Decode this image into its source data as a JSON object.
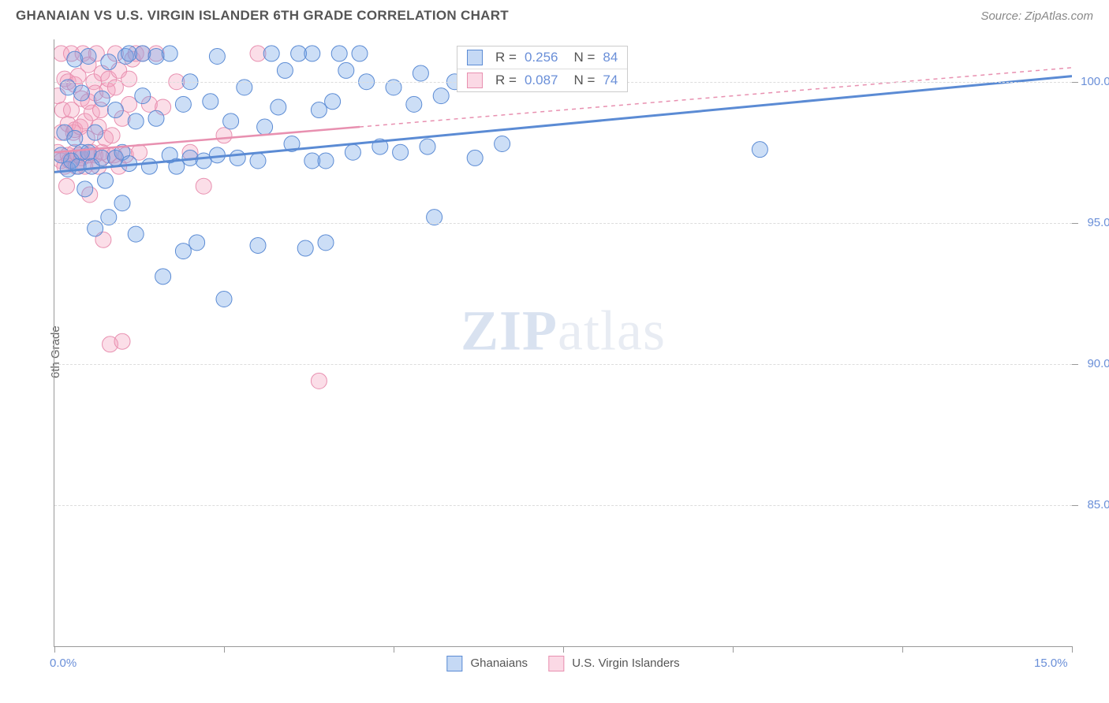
{
  "header": {
    "title": "GHANAIAN VS U.S. VIRGIN ISLANDER 6TH GRADE CORRELATION CHART",
    "source": "Source: ZipAtlas.com"
  },
  "chart": {
    "type": "scatter",
    "ylabel": "6th Grade",
    "xlim": [
      0,
      15
    ],
    "ylim": [
      80,
      101.5
    ],
    "x_ticks": [
      0,
      2.5,
      5,
      7.5,
      10,
      12.5,
      15
    ],
    "x_tick_labels_shown": {
      "0": "0.0%",
      "15": "15.0%"
    },
    "y_ticks": [
      85,
      90,
      95,
      100
    ],
    "y_tick_labels": [
      "85.0%",
      "90.0%",
      "95.0%",
      "100.0%"
    ],
    "background_color": "#ffffff",
    "grid_color": "#dddddd",
    "axis_color": "#999999",
    "label_color": "#6a8fd8",
    "marker_radius": 10,
    "marker_opacity": 0.45,
    "watermark": "ZIPatlas",
    "series": [
      {
        "name": "Ghanaians",
        "color_fill": "rgba(110,160,230,0.35)",
        "color_stroke": "#5b8bd4",
        "R": "0.256",
        "N": "84",
        "trend": {
          "x1": 0,
          "y1": 96.8,
          "x2": 15,
          "y2": 100.2,
          "solid_to_x": 15
        },
        "points": [
          [
            0.1,
            97.4
          ],
          [
            0.15,
            98.2
          ],
          [
            0.2,
            96.9
          ],
          [
            0.2,
            99.8
          ],
          [
            0.25,
            97.2
          ],
          [
            0.3,
            98.0
          ],
          [
            0.3,
            100.8
          ],
          [
            0.35,
            97.0
          ],
          [
            0.4,
            97.5
          ],
          [
            0.4,
            99.6
          ],
          [
            0.45,
            96.2
          ],
          [
            0.5,
            97.5
          ],
          [
            0.5,
            100.9
          ],
          [
            0.55,
            97.0
          ],
          [
            0.6,
            98.2
          ],
          [
            0.6,
            94.8
          ],
          [
            0.7,
            97.3
          ],
          [
            0.7,
            99.4
          ],
          [
            0.75,
            96.5
          ],
          [
            0.8,
            95.2
          ],
          [
            0.8,
            100.7
          ],
          [
            0.9,
            97.3
          ],
          [
            0.9,
            99.0
          ],
          [
            1.0,
            97.5
          ],
          [
            1.0,
            95.7
          ],
          [
            1.05,
            100.9
          ],
          [
            1.1,
            97.1
          ],
          [
            1.1,
            101.0
          ],
          [
            1.2,
            98.6
          ],
          [
            1.2,
            94.6
          ],
          [
            1.3,
            99.5
          ],
          [
            1.3,
            101.0
          ],
          [
            1.4,
            97.0
          ],
          [
            1.5,
            98.7
          ],
          [
            1.5,
            100.9
          ],
          [
            1.6,
            93.1
          ],
          [
            1.7,
            97.4
          ],
          [
            1.7,
            101.0
          ],
          [
            1.8,
            97.0
          ],
          [
            1.9,
            99.2
          ],
          [
            1.9,
            94.0
          ],
          [
            2.0,
            97.3
          ],
          [
            2.0,
            100.0
          ],
          [
            2.1,
            94.3
          ],
          [
            2.2,
            97.2
          ],
          [
            2.3,
            99.3
          ],
          [
            2.4,
            97.4
          ],
          [
            2.4,
            100.9
          ],
          [
            2.5,
            92.3
          ],
          [
            2.6,
            98.6
          ],
          [
            2.7,
            97.3
          ],
          [
            2.8,
            99.8
          ],
          [
            3.0,
            97.2
          ],
          [
            3.0,
            94.2
          ],
          [
            3.1,
            98.4
          ],
          [
            3.2,
            101.0
          ],
          [
            3.3,
            99.1
          ],
          [
            3.4,
            100.4
          ],
          [
            3.5,
            97.8
          ],
          [
            3.6,
            101.0
          ],
          [
            3.7,
            94.1
          ],
          [
            3.8,
            97.2
          ],
          [
            3.8,
            101.0
          ],
          [
            3.9,
            99.0
          ],
          [
            4.0,
            97.2
          ],
          [
            4.0,
            94.3
          ],
          [
            4.1,
            99.3
          ],
          [
            4.2,
            101.0
          ],
          [
            4.3,
            100.4
          ],
          [
            4.4,
            97.5
          ],
          [
            4.5,
            101.0
          ],
          [
            4.6,
            100.0
          ],
          [
            4.8,
            97.7
          ],
          [
            5.0,
            99.8
          ],
          [
            5.1,
            97.5
          ],
          [
            5.3,
            99.2
          ],
          [
            5.4,
            100.3
          ],
          [
            5.5,
            97.7
          ],
          [
            5.6,
            95.2
          ],
          [
            5.7,
            99.5
          ],
          [
            5.9,
            100.0
          ],
          [
            6.2,
            97.3
          ],
          [
            6.6,
            97.8
          ],
          [
            10.4,
            97.6
          ]
        ]
      },
      {
        "name": "U.S. Virgin Islanders",
        "color_fill": "rgba(244,160,190,0.35)",
        "color_stroke": "#e890b0",
        "R": "0.087",
        "N": "74",
        "trend": {
          "x1": 0,
          "y1": 97.5,
          "x2": 15,
          "y2": 100.5,
          "solid_to_x": 4.5
        },
        "points": [
          [
            0.05,
            97.5
          ],
          [
            0.05,
            99.5
          ],
          [
            0.1,
            97.2
          ],
          [
            0.1,
            98.2
          ],
          [
            0.1,
            101.0
          ],
          [
            0.12,
            99.0
          ],
          [
            0.15,
            97.0
          ],
          [
            0.15,
            100.1
          ],
          [
            0.18,
            96.3
          ],
          [
            0.2,
            97.4
          ],
          [
            0.2,
            98.5
          ],
          [
            0.2,
            100.0
          ],
          [
            0.22,
            97.2
          ],
          [
            0.25,
            99.0
          ],
          [
            0.25,
            101.0
          ],
          [
            0.28,
            98.2
          ],
          [
            0.3,
            97.5
          ],
          [
            0.3,
            98.3
          ],
          [
            0.3,
            99.9
          ],
          [
            0.32,
            97.0
          ],
          [
            0.35,
            97.4
          ],
          [
            0.35,
            100.2
          ],
          [
            0.38,
            98.4
          ],
          [
            0.4,
            97.3
          ],
          [
            0.4,
            99.4
          ],
          [
            0.42,
            101.0
          ],
          [
            0.45,
            97.0
          ],
          [
            0.45,
            98.6
          ],
          [
            0.48,
            98.0
          ],
          [
            0.5,
            97.4
          ],
          [
            0.5,
            99.3
          ],
          [
            0.5,
            100.6
          ],
          [
            0.52,
            96.0
          ],
          [
            0.55,
            97.5
          ],
          [
            0.55,
            98.9
          ],
          [
            0.58,
            100.0
          ],
          [
            0.6,
            97.4
          ],
          [
            0.6,
            99.6
          ],
          [
            0.62,
            101.0
          ],
          [
            0.65,
            97.0
          ],
          [
            0.65,
            98.4
          ],
          [
            0.68,
            99.0
          ],
          [
            0.7,
            100.3
          ],
          [
            0.7,
            97.5
          ],
          [
            0.72,
            94.4
          ],
          [
            0.75,
            98.0
          ],
          [
            0.78,
            99.7
          ],
          [
            0.8,
            97.4
          ],
          [
            0.8,
            100.1
          ],
          [
            0.82,
            90.7
          ],
          [
            0.85,
            98.1
          ],
          [
            0.88,
            97.4
          ],
          [
            0.9,
            99.8
          ],
          [
            0.9,
            101.0
          ],
          [
            0.95,
            97.0
          ],
          [
            0.95,
            100.4
          ],
          [
            1.0,
            90.8
          ],
          [
            1.0,
            98.7
          ],
          [
            1.05,
            97.4
          ],
          [
            1.1,
            100.1
          ],
          [
            1.1,
            99.2
          ],
          [
            1.15,
            100.8
          ],
          [
            1.2,
            101.0
          ],
          [
            1.25,
            97.5
          ],
          [
            1.3,
            101.0
          ],
          [
            1.4,
            99.2
          ],
          [
            1.5,
            101.0
          ],
          [
            1.6,
            99.1
          ],
          [
            1.8,
            100.0
          ],
          [
            2.0,
            97.5
          ],
          [
            2.2,
            96.3
          ],
          [
            2.5,
            98.1
          ],
          [
            3.0,
            101.0
          ],
          [
            3.9,
            89.4
          ]
        ]
      }
    ],
    "legend_bottom": [
      {
        "label": "Ghanaians",
        "fill": "rgba(110,160,230,0.4)",
        "stroke": "#5b8bd4"
      },
      {
        "label": "U.S. Virgin Islanders",
        "fill": "rgba(244,160,190,0.4)",
        "stroke": "#e890b0"
      }
    ]
  }
}
